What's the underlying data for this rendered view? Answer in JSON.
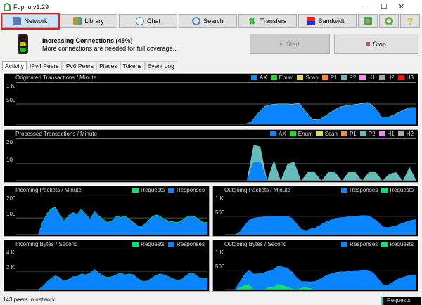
{
  "window": {
    "title": "Fopnu v1.29",
    "minimize": "─",
    "maximize": "☐",
    "close": "✕"
  },
  "toolbar": [
    {
      "label": "Network",
      "icon": "network-icon",
      "active": true
    },
    {
      "label": "Library",
      "icon": "library-icon"
    },
    {
      "label": "Chat",
      "icon": "chat-icon"
    },
    {
      "label": "Search",
      "icon": "search-icon"
    },
    {
      "label": "Transfers",
      "icon": "transfers-icon"
    },
    {
      "label": "Bandwidth",
      "icon": "bandwidth-icon"
    }
  ],
  "toolbar_icons": [
    "users-icon",
    "settings-icon",
    "help-icon"
  ],
  "status": {
    "title": "Increasing Connections  (45%)",
    "progress_percent": 45,
    "message": "More connections are needed for full coverage...",
    "start": "Start",
    "stop": "Stop"
  },
  "tabs": [
    "Activity",
    "IPv4 Peers",
    "IPv6 Peers",
    "Pieces",
    "Tokens",
    "Event Log"
  ],
  "colors": {
    "AX": "#0a84ff",
    "Enum": "#22dd22",
    "Scan": "#dddd55",
    "P1": "#ff8844",
    "P2": "#66bbbb",
    "H1": "#ff88ff",
    "H2": "#aaaaaa",
    "H3": "#ff1111",
    "Requests": "#11dd77",
    "Responses": "#0a84ff"
  },
  "charts": [
    {
      "title": "Originated Transactions / Minute",
      "legend": [
        "AX",
        "Enum",
        "Scan",
        "P1",
        "P2",
        "H1",
        "H2",
        "H3"
      ],
      "yticks": [
        "1 K",
        "500"
      ],
      "ymax": 1000,
      "grid": 500,
      "series": [
        {
          "name": "AX",
          "values": [
            0,
            0,
            0,
            0,
            0,
            0,
            0,
            0,
            0,
            0,
            0,
            0,
            0,
            0,
            0,
            0,
            0,
            0,
            0,
            0,
            0,
            0,
            0,
            0,
            0,
            0,
            0,
            0,
            0,
            0,
            0,
            0,
            0,
            0,
            0,
            0,
            0,
            0,
            0,
            0,
            0,
            0,
            0,
            0,
            0,
            0,
            0,
            0,
            0,
            0,
            0,
            0,
            0,
            0,
            0,
            0,
            0,
            0,
            0,
            0,
            0,
            0,
            0,
            0,
            0,
            0,
            0,
            0,
            0,
            0,
            0,
            0,
            0,
            0,
            0,
            0,
            0,
            0,
            0,
            0,
            0,
            0,
            0,
            0,
            0,
            0,
            0,
            0,
            0,
            0,
            0,
            0,
            0,
            0,
            0,
            0,
            0,
            0,
            0,
            0,
            0,
            0,
            0,
            0,
            0,
            0,
            0,
            0,
            0,
            0,
            0,
            0,
            0,
            0,
            0,
            0,
            0,
            0,
            0,
            0,
            0,
            0,
            0,
            0,
            0,
            0,
            0,
            0,
            0,
            0,
            0,
            0,
            0,
            0,
            0,
            0,
            0,
            0,
            0,
            0,
            0,
            0,
            0,
            0,
            0,
            0,
            0,
            0,
            0,
            0,
            0,
            0,
            0,
            0,
            0,
            0,
            0,
            0,
            0,
            0,
            0,
            0,
            0,
            0,
            0,
            0,
            0,
            0,
            0,
            0,
            0,
            0,
            0,
            0,
            0,
            0,
            0,
            0,
            0,
            0,
            0,
            0,
            0,
            0,
            0,
            0,
            0,
            0,
            0,
            0,
            0,
            0,
            0,
            0,
            0,
            0,
            0,
            0,
            0,
            0,
            0,
            0,
            0,
            0,
            0,
            0,
            0,
            0,
            0,
            0,
            0,
            0,
            0,
            0,
            0,
            0,
            0,
            0,
            0,
            0,
            0,
            0,
            0,
            0,
            0,
            0,
            0,
            0,
            0,
            0,
            0,
            0,
            0,
            0,
            0,
            0,
            0,
            0,
            0,
            0,
            0,
            0,
            0,
            0,
            0,
            0,
            0,
            0,
            0,
            0,
            0,
            0,
            0,
            0,
            0,
            0,
            0,
            0,
            0,
            0,
            0,
            0,
            0,
            0,
            0,
            0,
            0,
            0,
            0,
            0,
            0,
            0,
            0,
            0,
            0,
            0,
            0,
            0,
            0,
            0,
            0,
            0,
            0,
            0,
            0,
            0,
            0,
            0,
            0,
            0,
            0,
            0,
            0,
            0,
            0,
            0,
            0,
            0,
            0,
            0,
            0,
            0,
            0,
            0,
            0,
            0,
            0,
            0,
            0,
            0,
            0,
            0,
            0,
            0,
            0,
            0,
            0,
            0,
            0,
            0,
            0,
            0,
            0,
            0,
            0,
            0,
            0,
            0,
            0,
            0,
            0,
            0,
            0,
            0,
            0,
            0,
            0,
            0,
            0,
            0,
            0,
            0,
            0,
            0,
            0,
            0,
            0,
            0,
            0,
            0,
            0,
            0,
            0
          ]
        },
        {
          "name": "P2",
          "values": []
        }
      ]
    },
    {
      "title": "Processed Transactions / Minute",
      "legend": [
        "AX",
        "Enum",
        "Scan",
        "P1",
        "P2",
        "H1",
        "H2"
      ],
      "yticks": [
        "20",
        "10"
      ],
      "ymax": 24,
      "grid": 10
    },
    {
      "title": "Incoming Packets / Minute",
      "legend": [
        "Requests",
        "Responses"
      ],
      "yticks": [
        "200",
        "100"
      ],
      "ymax": 230,
      "grid": 100
    },
    {
      "title": "Outgoing Packets / Minute",
      "legend": [
        "Responses",
        "Requests"
      ],
      "yticks": [
        "1 K",
        "500"
      ],
      "ymax": 1050,
      "grid": 500
    },
    {
      "title": "Incoming Bytes / Second",
      "legend": [
        "Requests",
        "Responses"
      ],
      "yticks": [
        "4 K",
        "2 K"
      ],
      "ymax": 4300,
      "grid": 2000
    },
    {
      "title": "Outgoing Bytes / Second",
      "legend": [
        "Responses",
        "Requests"
      ],
      "yticks": [
        "1 K",
        "500"
      ],
      "ymax": 1050,
      "grid": 500
    }
  ],
  "chart_series": [
    [
      {
        "name": "AX",
        "values": [
          0,
          0,
          0,
          0,
          0,
          0,
          0,
          0,
          0,
          0,
          0,
          0,
          0,
          0,
          0,
          0,
          0,
          0,
          0,
          0,
          0,
          0,
          0,
          0,
          0,
          0,
          0,
          0,
          0,
          0,
          0,
          0,
          0,
          0,
          50,
          250,
          430,
          470,
          490,
          490,
          480,
          500,
          300,
          100,
          110,
          220,
          330,
          420,
          450,
          470,
          500,
          520,
          400,
          170,
          170,
          240,
          330,
          400,
          400
        ]
      },
      {
        "name": "P2",
        "values": [
          0,
          0,
          0,
          0,
          0,
          0,
          0,
          0,
          0,
          0,
          0,
          0,
          0,
          0,
          0,
          0,
          0,
          0,
          0,
          0,
          0,
          0,
          0,
          0,
          0,
          0,
          0,
          0,
          0,
          0,
          0,
          0,
          0,
          0,
          10,
          20,
          20,
          20,
          20,
          20,
          20,
          30,
          20,
          20,
          20,
          20,
          20,
          20,
          20,
          20,
          20,
          25,
          20,
          20,
          20,
          20,
          20,
          20,
          20
        ]
      }
    ],
    [
      {
        "name": "AX",
        "values": [
          0,
          0,
          0,
          0,
          0,
          0,
          0,
          0,
          0,
          0,
          0,
          0,
          0,
          0,
          0,
          0,
          0,
          0,
          0,
          0,
          0,
          0,
          0,
          0,
          0,
          0,
          0,
          0,
          0,
          0,
          0,
          0,
          0,
          0,
          0,
          11,
          11,
          0,
          0,
          0,
          0,
          0,
          0,
          0,
          0,
          0,
          0,
          0,
          0,
          0,
          0,
          0,
          0,
          0,
          0,
          0,
          0,
          0,
          0,
          0
        ]
      },
      {
        "name": "P2",
        "values": [
          0,
          0,
          0,
          0,
          0,
          0,
          0,
          0,
          0,
          0,
          0,
          0,
          0,
          0,
          0,
          0,
          0,
          0,
          0,
          0,
          0,
          0,
          0,
          0,
          0,
          0,
          0,
          0,
          0,
          0,
          0,
          0,
          0,
          0,
          0,
          10,
          9,
          0,
          12,
          0,
          10,
          11,
          0,
          5,
          5,
          0,
          5,
          5,
          0,
          5,
          5,
          0,
          5,
          5,
          0,
          4,
          5,
          0,
          8,
          0
        ]
      }
    ],
    [
      {
        "name": "Responses",
        "values": [
          0,
          0,
          0,
          0,
          0,
          0,
          70,
          120,
          150,
          160,
          120,
          80,
          110,
          130,
          120,
          150,
          120,
          90,
          140,
          110,
          90,
          70,
          80,
          110,
          100,
          110,
          90,
          70,
          50,
          50,
          70,
          100,
          115,
          110,
          90,
          80,
          75,
          70,
          80,
          100,
          110,
          105,
          90,
          70,
          70
        ]
      },
      {
        "name": "Requests",
        "values": [
          0,
          0,
          0,
          0,
          0,
          0,
          6,
          6,
          6,
          6,
          4,
          4,
          4,
          4,
          4,
          4,
          4,
          4,
          4,
          4,
          4,
          4,
          4,
          4,
          4,
          4,
          4,
          4,
          4,
          4,
          4,
          4,
          4,
          4,
          4,
          4,
          4,
          4,
          4,
          4,
          4,
          4,
          4,
          4,
          4
        ]
      }
    ],
    [
      {
        "name": "Requests",
        "values": [
          0,
          0,
          0,
          0,
          0,
          0,
          0,
          0,
          0,
          0,
          0,
          0,
          0,
          0,
          0,
          0,
          0,
          0,
          0,
          0,
          0,
          0,
          0,
          0,
          0,
          0,
          0,
          0,
          0,
          0,
          0,
          0,
          0,
          0,
          0,
          0,
          0,
          0,
          0,
          0,
          0,
          0,
          0,
          0,
          0,
          0,
          0,
          0,
          0,
          0,
          0,
          0,
          0,
          0,
          0,
          0,
          0,
          0,
          0,
          0
        ]
      },
      {
        "name": "Responses",
        "values": []
      }
    ],
    [
      {
        "name": "Responses",
        "values": [
          0,
          0,
          0,
          0,
          0,
          0,
          300,
          800,
          1200,
          1500,
          1300,
          900,
          1100,
          1400,
          1400,
          1700,
          1600,
          1800,
          2200,
          1800,
          1500,
          1300,
          1400,
          1600,
          1800,
          1600,
          1700,
          1600,
          1200,
          900,
          900,
          1200,
          1500,
          1700,
          1600,
          1400,
          1200,
          1000,
          1100,
          1500,
          1800,
          1700,
          1300,
          1200,
          1200
        ]
      },
      {
        "name": "Requests",
        "values": []
      }
    ],
    [
      {
        "name": "Requests",
        "values": [
          0,
          0,
          0,
          0,
          0,
          0,
          0,
          0,
          0,
          0,
          0,
          0,
          0,
          0,
          0,
          0,
          0,
          0,
          0,
          0,
          0,
          0,
          0,
          0,
          0,
          0,
          0,
          0,
          0,
          0,
          0,
          0,
          0,
          0,
          0,
          0,
          0,
          0,
          0,
          0,
          0,
          0,
          0,
          0,
          0,
          0,
          0,
          0,
          0,
          0,
          0,
          0,
          0,
          0,
          0,
          0,
          0,
          0,
          0,
          0
        ]
      },
      {
        "name": "Responses",
        "values": []
      }
    ]
  ],
  "footer": {
    "peers": "143 peers in network",
    "tooltip": "Requests"
  }
}
